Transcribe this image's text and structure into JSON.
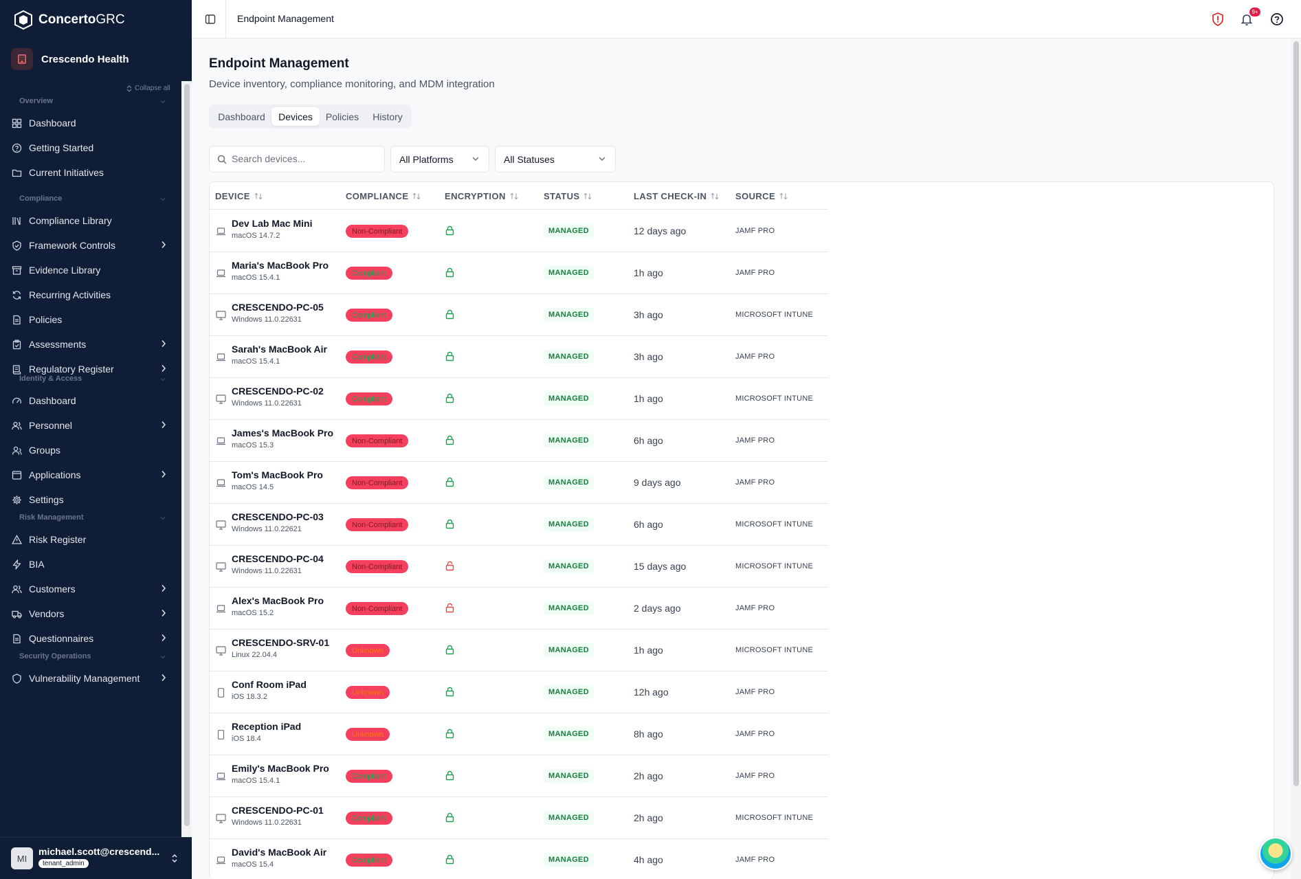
{
  "app": {
    "brand_bold": "Concerto",
    "brand_thin": "GRC",
    "org_name": "Crescendo Health",
    "collapse_all": "Collapse all"
  },
  "sidebar": {
    "sections": [
      {
        "label": "Overview",
        "items": [
          {
            "label": "Dashboard",
            "icon": "grid-icon",
            "has_children": false
          },
          {
            "label": "Getting Started",
            "icon": "help-circle-icon",
            "has_children": false
          },
          {
            "label": "Current Initiatives",
            "icon": "folder-icon",
            "has_children": false
          }
        ]
      },
      {
        "label": "Compliance",
        "items": [
          {
            "label": "Compliance Library",
            "icon": "library-icon",
            "has_children": false
          },
          {
            "label": "Framework Controls",
            "icon": "shield-check-icon",
            "has_children": true
          },
          {
            "label": "Evidence Library",
            "icon": "archive-icon",
            "has_children": false
          },
          {
            "label": "Recurring Activities",
            "icon": "refresh-icon",
            "has_children": false
          },
          {
            "label": "Policies",
            "icon": "file-text-icon",
            "has_children": false
          },
          {
            "label": "Assessments",
            "icon": "clipboard-icon",
            "has_children": true
          },
          {
            "label": "Regulatory Register",
            "icon": "book-icon",
            "has_children": true
          }
        ]
      },
      {
        "label": "Identity & Access",
        "items": [
          {
            "label": "Dashboard",
            "icon": "gauge-icon",
            "has_children": false
          },
          {
            "label": "Personnel",
            "icon": "users-icon",
            "has_children": true
          },
          {
            "label": "Groups",
            "icon": "user-group-icon",
            "has_children": false
          },
          {
            "label": "Applications",
            "icon": "app-window-icon",
            "has_children": true
          },
          {
            "label": "Settings",
            "icon": "gear-icon",
            "has_children": false
          }
        ]
      },
      {
        "label": "Risk Management",
        "items": [
          {
            "label": "Risk Register",
            "icon": "alert-triangle-icon",
            "has_children": false
          },
          {
            "label": "BIA",
            "icon": "zap-icon",
            "has_children": false
          },
          {
            "label": "Customers",
            "icon": "users-icon",
            "has_children": true
          },
          {
            "label": "Vendors",
            "icon": "truck-icon",
            "has_children": true
          },
          {
            "label": "Questionnaires",
            "icon": "file-text-icon",
            "has_children": true
          }
        ]
      },
      {
        "label": "Security Operations",
        "items": [
          {
            "label": "Vulnerability Management",
            "icon": "shield-icon",
            "has_children": true
          }
        ]
      }
    ]
  },
  "user": {
    "initials": "MI",
    "email": "michael.scott@crescend...",
    "role": "tenant_admin"
  },
  "topbar": {
    "title": "Endpoint Management",
    "notif_count": "9+"
  },
  "page": {
    "title": "Endpoint Management",
    "subtitle": "Device inventory, compliance monitoring, and MDM integration",
    "tabs": [
      "Dashboard",
      "Devices",
      "Policies",
      "History"
    ],
    "active_tab": "Devices"
  },
  "filters": {
    "search_placeholder": "Search devices...",
    "platform": "All Platforms",
    "status": "All Statuses"
  },
  "table": {
    "columns": [
      "DEVICE",
      "COMPLIANCE",
      "ENCRYPTION",
      "STATUS",
      "LAST CHECK-IN",
      "SOURCE"
    ],
    "rows": [
      {
        "name": "Dev Lab Mac Mini",
        "os": "macOS 14.7.2",
        "type": "laptop",
        "compliance": "Non-Compliant",
        "cstate": "noncompliant",
        "encrypted": true,
        "status": "MANAGED",
        "checkin": "12 days ago",
        "source": "JAMF PRO"
      },
      {
        "name": "Maria's MacBook Pro",
        "os": "macOS 15.4.1",
        "type": "laptop",
        "compliance": "Compliant",
        "cstate": "compliant",
        "encrypted": true,
        "status": "MANAGED",
        "checkin": "1h ago",
        "source": "JAMF PRO"
      },
      {
        "name": "CRESCENDO-PC-05",
        "os": "Windows 11.0.22631",
        "type": "desktop",
        "compliance": "Compliant",
        "cstate": "compliant",
        "encrypted": true,
        "status": "MANAGED",
        "checkin": "3h ago",
        "source": "MICROSOFT INTUNE"
      },
      {
        "name": "Sarah's MacBook Air",
        "os": "macOS 15.4.1",
        "type": "laptop",
        "compliance": "Compliant",
        "cstate": "compliant",
        "encrypted": true,
        "status": "MANAGED",
        "checkin": "3h ago",
        "source": "JAMF PRO"
      },
      {
        "name": "CRESCENDO-PC-02",
        "os": "Windows 11.0.22631",
        "type": "desktop",
        "compliance": "Compliant",
        "cstate": "compliant",
        "encrypted": true,
        "status": "MANAGED",
        "checkin": "1h ago",
        "source": "MICROSOFT INTUNE"
      },
      {
        "name": "James's MacBook Pro",
        "os": "macOS 15.3",
        "type": "laptop",
        "compliance": "Non-Compliant",
        "cstate": "noncompliant",
        "encrypted": true,
        "status": "MANAGED",
        "checkin": "6h ago",
        "source": "JAMF PRO"
      },
      {
        "name": "Tom's MacBook Pro",
        "os": "macOS 14.5",
        "type": "laptop",
        "compliance": "Non-Compliant",
        "cstate": "noncompliant",
        "encrypted": true,
        "status": "MANAGED",
        "checkin": "9 days ago",
        "source": "JAMF PRO"
      },
      {
        "name": "CRESCENDO-PC-03",
        "os": "Windows 11.0.22621",
        "type": "desktop",
        "compliance": "Non-Compliant",
        "cstate": "noncompliant",
        "encrypted": true,
        "status": "MANAGED",
        "checkin": "6h ago",
        "source": "MICROSOFT INTUNE"
      },
      {
        "name": "CRESCENDO-PC-04",
        "os": "Windows 11.0.22631",
        "type": "desktop",
        "compliance": "Non-Compliant",
        "cstate": "noncompliant",
        "encrypted": false,
        "status": "MANAGED",
        "checkin": "15 days ago",
        "source": "MICROSOFT INTUNE"
      },
      {
        "name": "Alex's MacBook Pro",
        "os": "macOS 15.2",
        "type": "laptop",
        "compliance": "Non-Compliant",
        "cstate": "noncompliant",
        "encrypted": false,
        "status": "MANAGED",
        "checkin": "2 days ago",
        "source": "JAMF PRO"
      },
      {
        "name": "CRESCENDO-SRV-01",
        "os": "Linux 22.04.4",
        "type": "desktop",
        "compliance": "Unknown",
        "cstate": "unknown",
        "encrypted": true,
        "status": "MANAGED",
        "checkin": "1h ago",
        "source": "MICROSOFT INTUNE"
      },
      {
        "name": "Conf Room iPad",
        "os": "iOS 18.3.2",
        "type": "tablet",
        "compliance": "Unknown",
        "cstate": "unknown",
        "encrypted": true,
        "status": "MANAGED",
        "checkin": "12h ago",
        "source": "JAMF PRO"
      },
      {
        "name": "Reception iPad",
        "os": "iOS 18.4",
        "type": "tablet",
        "compliance": "Unknown",
        "cstate": "unknown",
        "encrypted": true,
        "status": "MANAGED",
        "checkin": "8h ago",
        "source": "JAMF PRO"
      },
      {
        "name": "Emily's MacBook Pro",
        "os": "macOS 15.4.1",
        "type": "laptop",
        "compliance": "Compliant",
        "cstate": "compliant",
        "encrypted": true,
        "status": "MANAGED",
        "checkin": "2h ago",
        "source": "JAMF PRO"
      },
      {
        "name": "CRESCENDO-PC-01",
        "os": "Windows 11.0.22631",
        "type": "desktop",
        "compliance": "Compliant",
        "cstate": "compliant",
        "encrypted": true,
        "status": "MANAGED",
        "checkin": "2h ago",
        "source": "MICROSOFT INTUNE"
      },
      {
        "name": "David's MacBook Air",
        "os": "macOS 15.4",
        "type": "laptop",
        "compliance": "Compliant",
        "cstate": "compliant",
        "encrypted": true,
        "status": "MANAGED",
        "checkin": "4h ago",
        "source": "JAMF PRO"
      }
    ]
  },
  "colors": {
    "sidebar_bg": "#0f1d36",
    "badge_bg": "#f43f5e",
    "encrypted": "#16a34a",
    "unencrypted": "#ef4444",
    "managed_text": "#15803d"
  }
}
